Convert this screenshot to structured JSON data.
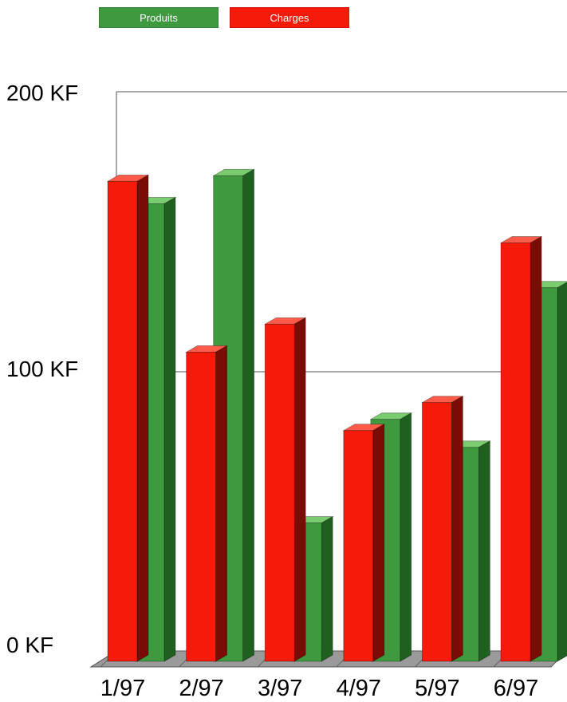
{
  "chart_data": {
    "type": "bar",
    "categories": [
      "1/97",
      "2/97",
      "3/97",
      "4/97",
      "5/97",
      "6/97"
    ],
    "series": [
      {
        "name": "Produits",
        "color": "#3f9a3f",
        "values": [
          160,
          170,
          46,
          83,
          73,
          130
        ]
      },
      {
        "name": "Charges",
        "color": "#f51a0a",
        "values": [
          168,
          107,
          117,
          79,
          89,
          146
        ]
      }
    ],
    "yticks": [
      "0 KF",
      "100 KF",
      "200 KF"
    ],
    "ytick_values": [
      0,
      100,
      200
    ],
    "ylim": [
      0,
      200
    ],
    "grid": true,
    "legend_position": "top-left",
    "title": "",
    "xlabel": "",
    "ylabel": ""
  }
}
